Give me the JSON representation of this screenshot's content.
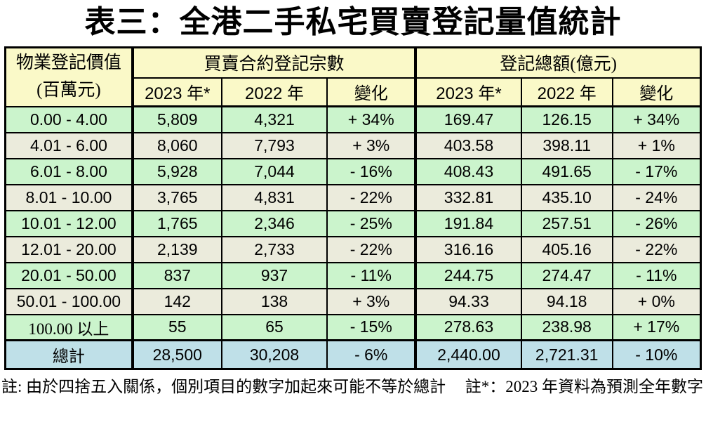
{
  "title": "表三：全港二手私宅買賣登記量值統計",
  "table": {
    "row_header": {
      "line1": "物業登記價值",
      "line2": "(百萬元)"
    },
    "groups": {
      "count": "買賣合約登記宗數",
      "amount": "登記總額(億元)"
    },
    "sub_headers": {
      "y2023": "2023 年*",
      "y2022": "2022 年",
      "change": "變化"
    },
    "rows": [
      {
        "range": "0.00 - 4.00",
        "count_2023": "5,809",
        "count_2022": "4,321",
        "count_change": "+ 34%",
        "amount_2023": "169.47",
        "amount_2022": "126.15",
        "amount_change": "+ 34%"
      },
      {
        "range": "4.01 - 6.00",
        "count_2023": "8,060",
        "count_2022": "7,793",
        "count_change": "+ 3%",
        "amount_2023": "403.58",
        "amount_2022": "398.11",
        "amount_change": "+ 1%"
      },
      {
        "range": "6.01 - 8.00",
        "count_2023": "5,928",
        "count_2022": "7,044",
        "count_change": "- 16%",
        "amount_2023": "408.43",
        "amount_2022": "491.65",
        "amount_change": "- 17%"
      },
      {
        "range": "8.01 - 10.00",
        "count_2023": "3,765",
        "count_2022": "4,831",
        "count_change": "- 22%",
        "amount_2023": "332.81",
        "amount_2022": "435.10",
        "amount_change": "- 24%"
      },
      {
        "range": "10.01 - 12.00",
        "count_2023": "1,765",
        "count_2022": "2,346",
        "count_change": "- 25%",
        "amount_2023": "191.84",
        "amount_2022": "257.51",
        "amount_change": "- 26%"
      },
      {
        "range": "12.01 - 20.00",
        "count_2023": "2,139",
        "count_2022": "2,733",
        "count_change": "- 22%",
        "amount_2023": "316.16",
        "amount_2022": "405.16",
        "amount_change": "- 22%"
      },
      {
        "range": "20.01 - 50.00",
        "count_2023": "837",
        "count_2022": "937",
        "count_change": "- 11%",
        "amount_2023": "244.75",
        "amount_2022": "274.47",
        "amount_change": "- 11%"
      },
      {
        "range": "50.01 - 100.00",
        "count_2023": "142",
        "count_2022": "138",
        "count_change": "+ 3%",
        "amount_2023": "94.33",
        "amount_2022": "94.18",
        "amount_change": "+ 0%"
      },
      {
        "range": "100.00 以上",
        "count_2023": "55",
        "count_2022": "65",
        "count_change": "- 15%",
        "amount_2023": "278.63",
        "amount_2022": "238.98",
        "amount_change": "+ 17%"
      }
    ],
    "total": {
      "label": "總計",
      "count_2023": "28,500",
      "count_2022": "30,208",
      "count_change": "- 6%",
      "amount_2023": "2,440.00",
      "amount_2022": "2,721.31",
      "amount_change": "- 10%"
    }
  },
  "notes": {
    "rounding": "註: 由於四捨五入關係，個別項目的數字加起來可能不等於總計",
    "forecast": "註*：2023 年資料為預測全年數字"
  },
  "colors": {
    "header-bg": "#FAF9C8",
    "row-green": "#CBF4CC",
    "row-beige": "#EBEBDC",
    "total-bg": "#BFE0E8",
    "border": "#000000"
  }
}
